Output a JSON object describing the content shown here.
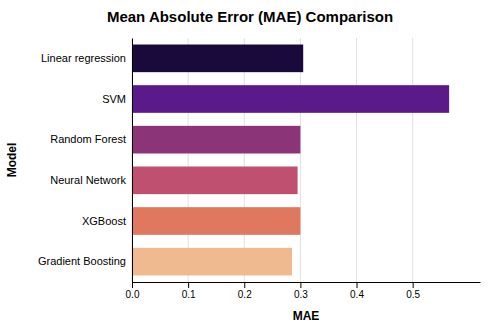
{
  "chart_data": {
    "type": "bar",
    "orientation": "horizontal",
    "title": "Mean Absolute Error (MAE) Comparison",
    "xlabel": "MAE",
    "ylabel": "Model",
    "categories": [
      "Linear regression",
      "SVM",
      "Random Forest",
      "Neural Network",
      "XGBoost",
      "Gradient Boosting"
    ],
    "values": [
      0.305,
      0.565,
      0.3,
      0.295,
      0.3,
      0.285
    ],
    "colors": [
      "#1a0a3c",
      "#5b1a8a",
      "#8b3478",
      "#c05070",
      "#e07860",
      "#f0ba90"
    ],
    "xlim": [
      0,
      0.62
    ],
    "xticks": [
      {
        "value": 0,
        "label": "0.0"
      },
      0.1,
      0.2,
      0.3,
      0.4,
      0.5
    ],
    "grid": true
  }
}
